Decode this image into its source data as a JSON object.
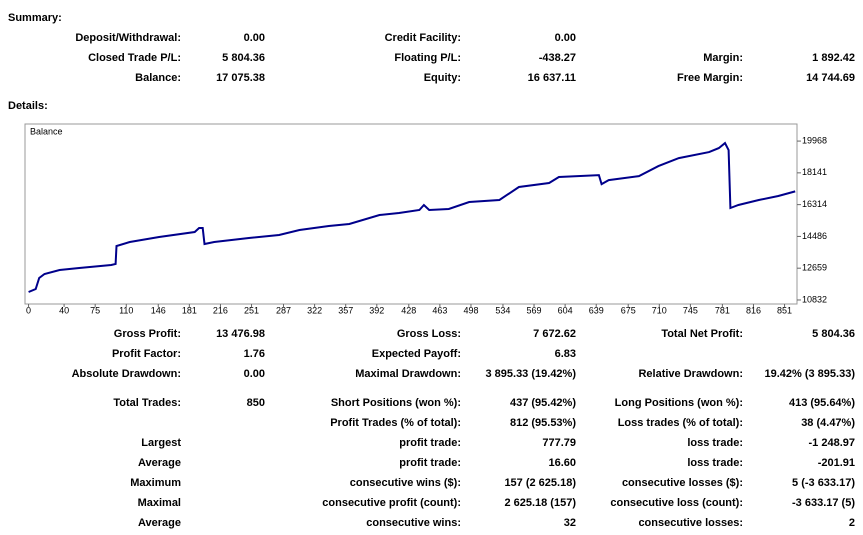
{
  "summary": {
    "title": "Summary:",
    "rows": [
      [
        [
          "Deposit/Withdrawal:",
          "0.00"
        ],
        [
          "Credit Facility:",
          "0.00"
        ],
        []
      ],
      [
        [
          "Closed Trade P/L:",
          "5 804.36"
        ],
        [
          "Floating P/L:",
          "-438.27"
        ],
        [
          "Margin:",
          "1 892.42"
        ]
      ],
      [
        [
          "Balance:",
          "17 075.38"
        ],
        [
          "Equity:",
          "16 637.11"
        ],
        [
          "Free Margin:",
          "14 744.69"
        ]
      ]
    ]
  },
  "details_title": "Details:",
  "chart_data": {
    "type": "line",
    "title": "Balance",
    "x": [
      0,
      8,
      12,
      18,
      35,
      57,
      93,
      98,
      99,
      114,
      147,
      187,
      192,
      196,
      198,
      209,
      248,
      282,
      305,
      338,
      361,
      395,
      417,
      440,
      445,
      451,
      473,
      496,
      530,
      552,
      586,
      597,
      642,
      645,
      653,
      687,
      709,
      732,
      766,
      777,
      784,
      788,
      790,
      799,
      822,
      844,
      863
    ],
    "series": [
      {
        "name": "Balance",
        "color": "#00008b",
        "values": [
          11292,
          11464,
          12096,
          12326,
          12556,
          12671,
          12843,
          12901,
          13935,
          14165,
          14452,
          14739,
          14969,
          14969,
          14050,
          14165,
          14394,
          14567,
          14854,
          15084,
          15199,
          15716,
          15831,
          16003,
          16291,
          16003,
          16061,
          16463,
          16578,
          17325,
          17555,
          17900,
          18014,
          17497,
          17727,
          17957,
          18532,
          18991,
          19336,
          19566,
          19853,
          19451,
          16118,
          16291,
          16578,
          16808,
          17075
        ]
      }
    ],
    "xlim": [
      -4,
      865
    ],
    "ylim": [
      10600,
      20950
    ],
    "xticks": [
      0,
      40,
      75,
      110,
      146,
      181,
      216,
      251,
      287,
      322,
      357,
      392,
      428,
      463,
      498,
      534,
      569,
      604,
      639,
      675,
      710,
      745,
      781,
      816,
      851
    ],
    "yticks": [
      10832,
      12659,
      14486,
      16314,
      18141,
      19968
    ]
  },
  "details": {
    "rows": [
      [
        [
          "Gross Profit:",
          "13 476.98"
        ],
        [
          "Gross Loss:",
          "7 672.62"
        ],
        [
          "Total Net Profit:",
          "5 804.36"
        ]
      ],
      [
        [
          "Profit Factor:",
          "1.76"
        ],
        [
          "Expected Payoff:",
          "6.83"
        ],
        []
      ],
      [
        [
          "Absolute Drawdown:",
          "0.00"
        ],
        [
          "Maximal Drawdown:",
          "3 895.33 (19.42%)"
        ],
        [
          "Relative Drawdown:",
          "19.42% (3 895.33)"
        ]
      ],
      [
        [
          "Total Trades:",
          "850"
        ],
        [
          "Short Positions (won %):",
          "437 (95.42%)"
        ],
        [
          "Long Positions (won %):",
          "413 (95.64%)"
        ]
      ],
      [
        [],
        [
          "Profit Trades (% of total):",
          "812 (95.53%)"
        ],
        [
          "Loss trades (% of total):",
          "38 (4.47%)"
        ]
      ],
      [
        [
          "Largest"
        ],
        [
          "profit trade:",
          "777.79"
        ],
        [
          "loss trade:",
          "-1 248.97"
        ]
      ],
      [
        [
          "Average"
        ],
        [
          "profit trade:",
          "16.60"
        ],
        [
          "loss trade:",
          "-201.91"
        ]
      ],
      [
        [
          "Maximum"
        ],
        [
          "consecutive wins ($):",
          "157 (2 625.18)"
        ],
        [
          "consecutive losses ($):",
          "5 (-3 633.17)"
        ]
      ],
      [
        [
          "Maximal"
        ],
        [
          "consecutive profit (count):",
          "2 625.18 (157)"
        ],
        [
          "consecutive loss (count):",
          "-3 633.17 (5)"
        ]
      ],
      [
        [
          "Average"
        ],
        [
          "consecutive wins:",
          "32"
        ],
        [
          "consecutive losses:",
          "2"
        ]
      ]
    ]
  }
}
